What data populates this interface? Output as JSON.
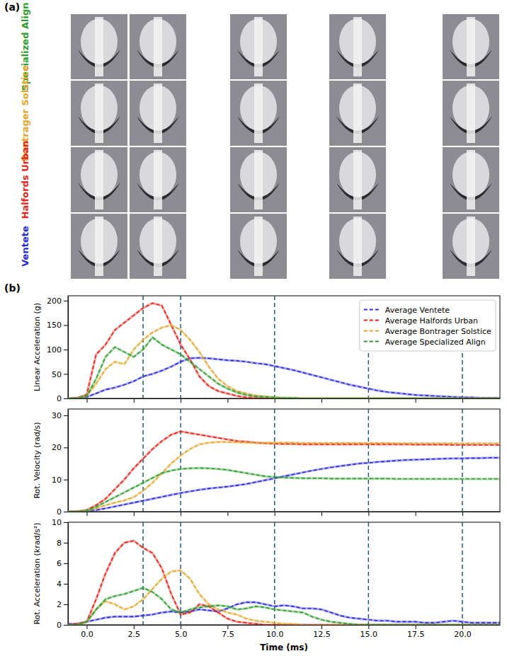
{
  "photo_panel": {
    "label": "(a)",
    "rows": [
      {
        "name": "Specialized Align",
        "color": "#2f9e2f"
      },
      {
        "name": "Bontrager Solstice",
        "color": "#e3a72f"
      },
      {
        "name": "Halfords Urban",
        "color": "#e3241b"
      },
      {
        "name": "Ventete",
        "color": "#2b2bd9"
      }
    ]
  },
  "panel_b_label": "(b)",
  "chart_data": [
    {
      "type": "line",
      "y_label": "Linear Acceleration (g)",
      "line_style": "dashed",
      "tick_labels": "y",
      "legend": "upper right",
      "x": [
        -1,
        -0.5,
        0,
        0.5,
        1,
        1.5,
        2,
        2.5,
        3,
        3.5,
        4,
        4.5,
        5,
        5.5,
        6,
        6.5,
        7,
        7.5,
        8,
        8.5,
        9,
        9.5,
        10,
        10.5,
        11,
        11.5,
        12,
        12.5,
        13,
        13.5,
        14,
        14.5,
        15,
        15.5,
        16,
        16.5,
        17,
        17.5,
        18,
        18.5,
        19,
        19.5,
        20,
        20.5,
        21,
        21.5,
        22
      ],
      "xlim": [
        -1,
        22
      ],
      "xticks": [
        0,
        2.5,
        5,
        7.5,
        10,
        12.5,
        15,
        17.5,
        20
      ],
      "ylim": [
        0,
        210
      ],
      "yticks": [
        0,
        50,
        100,
        150,
        200
      ],
      "vlines": [
        3,
        5,
        10,
        15,
        20
      ],
      "series": [
        {
          "name": "Average Ventete",
          "color": "#2b2bd9",
          "values": [
            0,
            1,
            3,
            10,
            18,
            22,
            28,
            35,
            45,
            50,
            57,
            65,
            75,
            82,
            83,
            82,
            80,
            78,
            77,
            75,
            72,
            70,
            66,
            62,
            58,
            53,
            48,
            43,
            38,
            33,
            28,
            24,
            20,
            16,
            13,
            11,
            9,
            7,
            6,
            5,
            4,
            3,
            2,
            2,
            1,
            1,
            1
          ]
        },
        {
          "name": "Average Halfords Urban",
          "color": "#e3241b",
          "values": [
            0,
            1,
            8,
            90,
            110,
            140,
            155,
            170,
            185,
            195,
            190,
            150,
            110,
            80,
            45,
            25,
            15,
            10,
            5,
            2,
            1,
            0,
            0,
            0,
            0,
            0,
            0,
            0,
            0,
            0,
            0,
            0,
            0,
            0,
            0,
            0,
            0,
            0,
            0,
            0,
            0,
            0,
            0,
            0,
            0,
            0,
            0
          ]
        },
        {
          "name": "Average Bontrager Solstice",
          "color": "#e3a72f",
          "values": [
            0,
            0,
            5,
            30,
            60,
            75,
            70,
            100,
            120,
            135,
            145,
            150,
            140,
            120,
            95,
            65,
            40,
            25,
            15,
            10,
            6,
            4,
            2,
            1,
            1,
            0,
            0,
            0,
            0,
            0,
            0,
            0,
            0,
            0,
            0,
            0,
            0,
            0,
            0,
            0,
            0,
            0,
            0,
            0,
            0,
            0,
            0
          ]
        },
        {
          "name": "Average Specialized Align",
          "color": "#2f9e2f",
          "values": [
            0,
            0,
            5,
            40,
            85,
            105,
            95,
            85,
            100,
            125,
            110,
            100,
            90,
            75,
            60,
            45,
            30,
            20,
            12,
            7,
            4,
            3,
            2,
            1,
            1,
            0,
            0,
            0,
            0,
            0,
            0,
            0,
            0,
            0,
            0,
            0,
            0,
            0,
            0,
            0,
            0,
            0,
            0,
            0,
            0,
            0,
            0
          ]
        }
      ]
    },
    {
      "type": "line",
      "y_label": "Rot. Velocity (rad/s)",
      "line_style": "dashed",
      "tick_labels": "y",
      "x": [
        -1,
        -0.5,
        0,
        0.5,
        1,
        1.5,
        2,
        2.5,
        3,
        3.5,
        4,
        4.5,
        5,
        5.5,
        6,
        6.5,
        7,
        7.5,
        8,
        8.5,
        9,
        9.5,
        10,
        10.5,
        11,
        11.5,
        12,
        12.5,
        13,
        13.5,
        14,
        14.5,
        15,
        15.5,
        16,
        16.5,
        17,
        17.5,
        18,
        18.5,
        19,
        19.5,
        20,
        20.5,
        21,
        21.5,
        22
      ],
      "xlim": [
        -1,
        22
      ],
      "xticks": [
        0,
        2.5,
        5,
        7.5,
        10,
        12.5,
        15,
        17.5,
        20
      ],
      "ylim": [
        0,
        32
      ],
      "yticks": [
        0,
        10,
        20,
        30
      ],
      "vlines": [
        3,
        5,
        10,
        15,
        20
      ],
      "series": [
        {
          "color": "#2b2bd9",
          "values": [
            0,
            0,
            0.2,
            0.5,
            1,
            1.6,
            2.2,
            2.8,
            3.4,
            4,
            4.6,
            5.2,
            5.8,
            6.3,
            6.8,
            7.2,
            7.5,
            7.8,
            8.2,
            8.6,
            9.2,
            9.8,
            10.4,
            11,
            11.6,
            12.2,
            12.8,
            13.3,
            13.8,
            14.2,
            14.6,
            15,
            15.2,
            15.5,
            15.7,
            15.9,
            16.1,
            16.2,
            16.3,
            16.4,
            16.5,
            16.6,
            16.6,
            16.7,
            16.7,
            16.8,
            16.8
          ]
        },
        {
          "color": "#e3241b",
          "values": [
            0,
            0.1,
            0.5,
            2,
            4,
            7,
            10,
            13.5,
            16.5,
            19.5,
            22,
            24,
            25,
            24.5,
            24,
            23.5,
            23,
            22.5,
            22,
            21.8,
            21.5,
            21.3,
            21.2,
            21.1,
            21.1,
            21,
            21,
            21,
            21,
            21,
            21,
            21,
            21,
            21,
            21,
            21,
            21,
            20.9,
            20.9,
            20.9,
            20.9,
            20.8,
            20.8,
            20.8,
            20.8,
            20.8,
            20.8
          ]
        },
        {
          "color": "#e3a72f",
          "values": [
            0,
            0,
            0.3,
            1,
            2,
            2.8,
            3.5,
            4.5,
            6.5,
            9,
            12,
            15,
            17.5,
            19.5,
            21,
            21.5,
            21.7,
            21.7,
            21.6,
            21.5,
            21.5,
            21.5,
            21.5,
            21.5,
            21.5,
            21.4,
            21.4,
            21.4,
            21.4,
            21.4,
            21.4,
            21.4,
            21.4,
            21.4,
            21.4,
            21.3,
            21.3,
            21.3,
            21.3,
            21.3,
            21.3,
            21.3,
            21.3,
            21.3,
            21.3,
            21.3,
            21.3
          ]
        },
        {
          "color": "#2f9e2f",
          "values": [
            0,
            0,
            0.3,
            1.5,
            3,
            4.5,
            6,
            7.5,
            9,
            10.5,
            12,
            12.8,
            13.3,
            13.5,
            13.6,
            13.5,
            13.3,
            13,
            12.5,
            12,
            11.5,
            11,
            10.8,
            10.6,
            10.5,
            10.4,
            10.4,
            10.4,
            10.3,
            10.3,
            10.3,
            10.3,
            10.3,
            10.3,
            10.3,
            10.2,
            10.2,
            10.2,
            10.2,
            10.2,
            10.2,
            10.2,
            10.2,
            10.2,
            10.2,
            10.2,
            10.2
          ]
        }
      ]
    },
    {
      "type": "line",
      "y_label": "Rot. Acceleration (krad/s²)",
      "x_label": "Time (ms)",
      "line_style": "dashed",
      "x": [
        -1,
        -0.5,
        0,
        0.5,
        1,
        1.5,
        2,
        2.5,
        3,
        3.5,
        4,
        4.5,
        5,
        5.5,
        6,
        6.5,
        7,
        7.5,
        8,
        8.5,
        9,
        9.5,
        10,
        10.5,
        11,
        11.5,
        12,
        12.5,
        13,
        13.5,
        14,
        14.5,
        15,
        15.5,
        16,
        16.5,
        17,
        17.5,
        18,
        18.5,
        19,
        19.5,
        20,
        20.5,
        21,
        21.5,
        22
      ],
      "xlim": [
        -1,
        22
      ],
      "xticks": [
        {
          "value": 0,
          "label": "0.0"
        },
        {
          "value": 2.5,
          "label": "2.5"
        },
        {
          "value": 5,
          "label": "5.0"
        },
        {
          "value": 7.5,
          "label": "7.5"
        },
        {
          "value": 10,
          "label": "10.0"
        },
        {
          "value": 12.5,
          "label": "12.5"
        },
        {
          "value": 15,
          "label": "15.0"
        },
        {
          "value": 17.5,
          "label": "17.5"
        },
        {
          "value": 20,
          "label": "20.0"
        }
      ],
      "ylim": [
        0,
        10
      ],
      "yticks": [
        0,
        2,
        4,
        6,
        8,
        10
      ],
      "vlines": [
        3,
        5,
        10,
        15,
        20
      ],
      "series": [
        {
          "color": "#2b2bd9",
          "values": [
            0.1,
            0.1,
            0.3,
            0.5,
            0.7,
            0.8,
            0.8,
            0.8,
            0.9,
            1,
            1.2,
            1.3,
            1.2,
            1.3,
            1.5,
            1.4,
            1.3,
            1.6,
            2,
            2.2,
            2.2,
            2,
            1.8,
            1.9,
            1.8,
            1.6,
            1.6,
            1.5,
            1.2,
            0.9,
            0.7,
            0.6,
            0.5,
            0.4,
            0.4,
            0.3,
            0.3,
            0.3,
            0.2,
            0.2,
            0.3,
            0.4,
            0.3,
            0.2,
            0.2,
            0.2,
            0.2
          ]
        },
        {
          "color": "#e3241b",
          "values": [
            0,
            0.1,
            0.3,
            2.5,
            5,
            7,
            8,
            8.2,
            7.5,
            7,
            5.5,
            3,
            1,
            1.2,
            2,
            1.8,
            1.2,
            0.6,
            0.3,
            0.2,
            0.1,
            0,
            0,
            0,
            0,
            0,
            0,
            0,
            0,
            0,
            0,
            0,
            0,
            0,
            0,
            0,
            0,
            0,
            0,
            0,
            0,
            0,
            0,
            0,
            0,
            0,
            0
          ]
        },
        {
          "color": "#e3a72f",
          "values": [
            0,
            0,
            0.3,
            1.5,
            2.3,
            2,
            1.5,
            1.8,
            2.5,
            3.5,
            4.5,
            5.2,
            5.3,
            4.5,
            3,
            2,
            1.5,
            1.2,
            1,
            0.6,
            0.4,
            0.3,
            0.2,
            0.1,
            0.1,
            0,
            0,
            0,
            0,
            0,
            0,
            0,
            0,
            0,
            0,
            0,
            0,
            0,
            0,
            0,
            0,
            0,
            0,
            0,
            0,
            0,
            0
          ]
        },
        {
          "color": "#2f9e2f",
          "values": [
            0,
            0,
            0.3,
            1.5,
            2.5,
            2.8,
            3,
            3.3,
            3.6,
            3.2,
            2.5,
            1.5,
            1.2,
            1.5,
            1.7,
            1.8,
            1.9,
            1.8,
            1.5,
            1.6,
            1.8,
            1.7,
            1.5,
            1.4,
            1.3,
            1.2,
            0.8,
            0.5,
            0.3,
            0.2,
            0.1,
            0,
            0,
            0,
            0,
            0,
            0,
            0,
            0,
            0,
            0,
            0,
            0,
            0,
            0,
            0,
            0
          ]
        }
      ]
    }
  ]
}
